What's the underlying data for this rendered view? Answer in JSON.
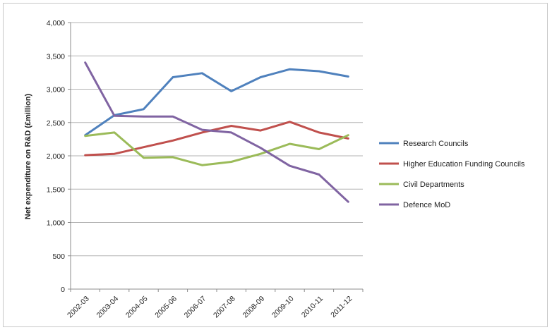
{
  "chart_data": {
    "type": "line",
    "title": "",
    "xlabel": "",
    "ylabel": "Net expenditure on R&D (£million)",
    "categories": [
      "2002-03",
      "2003-04",
      "2004-05",
      "2005-06",
      "2006-07",
      "2007-08",
      "2008-09",
      "2009-10",
      "2010-11",
      "2011-12"
    ],
    "ylim": [
      0,
      4000
    ],
    "yticks": [
      0,
      500,
      1000,
      1500,
      2000,
      2500,
      3000,
      3500,
      4000
    ],
    "ytick_labels": [
      "0",
      "500",
      "1,000",
      "1,500",
      "2,000",
      "2,500",
      "3,000",
      "3,500",
      "4,000"
    ],
    "grid": "horizontal",
    "legend_position": "right",
    "series": [
      {
        "name": "Research Councils",
        "color": "#4f81bd",
        "values": [
          2310,
          2610,
          2700,
          3180,
          3240,
          2970,
          3180,
          3300,
          3270,
          3190
        ]
      },
      {
        "name": "Higher Education Funding Councils",
        "color": "#c0504d",
        "values": [
          2010,
          2030,
          2130,
          2230,
          2350,
          2450,
          2380,
          2510,
          2350,
          2260
        ]
      },
      {
        "name": "Civil Departments",
        "color": "#9bbb59",
        "values": [
          2300,
          2350,
          1970,
          1980,
          1860,
          1910,
          2030,
          2180,
          2100,
          2310
        ]
      },
      {
        "name": "Defence MoD",
        "color": "#8064a2",
        "values": [
          3400,
          2600,
          2590,
          2590,
          2390,
          2350,
          2120,
          1850,
          1720,
          1310
        ]
      }
    ]
  }
}
